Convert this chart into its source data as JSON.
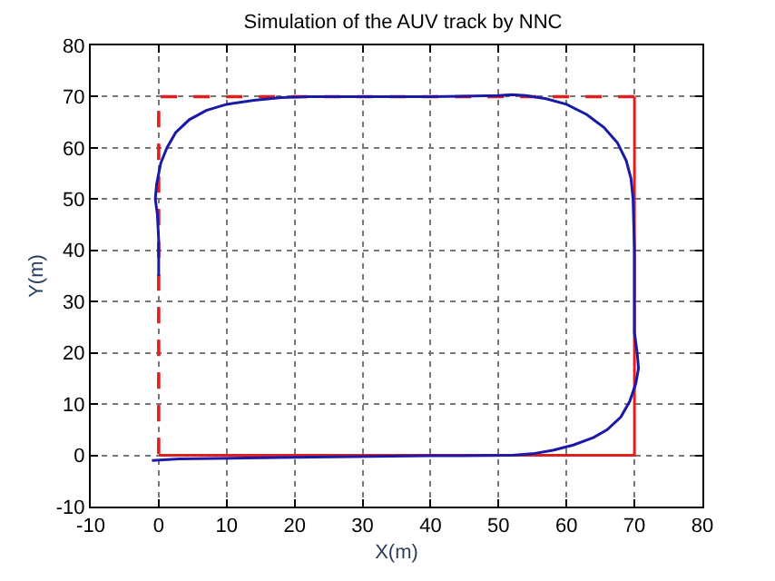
{
  "chart_data": {
    "type": "line",
    "title": "Simulation of the AUV track by NNC",
    "xlabel": "X(m)",
    "ylabel": "Y(m)",
    "xlim": [
      -10,
      80
    ],
    "ylim": [
      -10,
      80
    ],
    "xticks": [
      -10,
      0,
      10,
      20,
      30,
      40,
      50,
      60,
      70,
      80
    ],
    "yticks": [
      -10,
      0,
      10,
      20,
      30,
      40,
      50,
      60,
      70,
      80
    ],
    "grid": true,
    "marker": "none",
    "series": [
      {
        "color": "#e02020",
        "line_style": "solid",
        "x": [
          0,
          70,
          70
        ],
        "values": [
          0,
          0,
          70
        ]
      },
      {
        "color": "#e02020",
        "line_style": "dashed",
        "x": [
          70,
          0,
          0
        ],
        "values": [
          70,
          70,
          0
        ]
      },
      {
        "color": "#1a1aa8",
        "line_style": "solid",
        "x": [
          -1,
          3,
          20,
          40,
          52,
          55,
          58,
          61,
          64,
          66,
          68,
          69.3,
          70.2,
          70.6,
          70.4,
          70,
          70,
          69.8,
          69.5,
          68.8,
          67.5,
          65.5,
          63,
          60,
          57,
          54,
          52,
          50,
          40,
          30,
          22,
          18,
          14,
          10,
          7,
          4.5,
          2.5,
          1.2,
          0.3,
          -0.3,
          -0.5,
          -0.2,
          0,
          0
        ],
        "values": [
          -1,
          -0.7,
          -0.4,
          -0.1,
          0,
          0.3,
          1,
          2,
          3.5,
          5,
          7.5,
          10.5,
          14,
          17,
          20,
          24,
          40,
          50,
          54,
          57.5,
          61,
          64,
          66.5,
          68.5,
          69.6,
          70.2,
          70.4,
          70.2,
          70,
          70,
          70,
          69.8,
          69.3,
          68.5,
          67.3,
          65.5,
          63,
          60,
          57,
          53,
          50,
          47,
          42,
          35
        ]
      }
    ]
  }
}
